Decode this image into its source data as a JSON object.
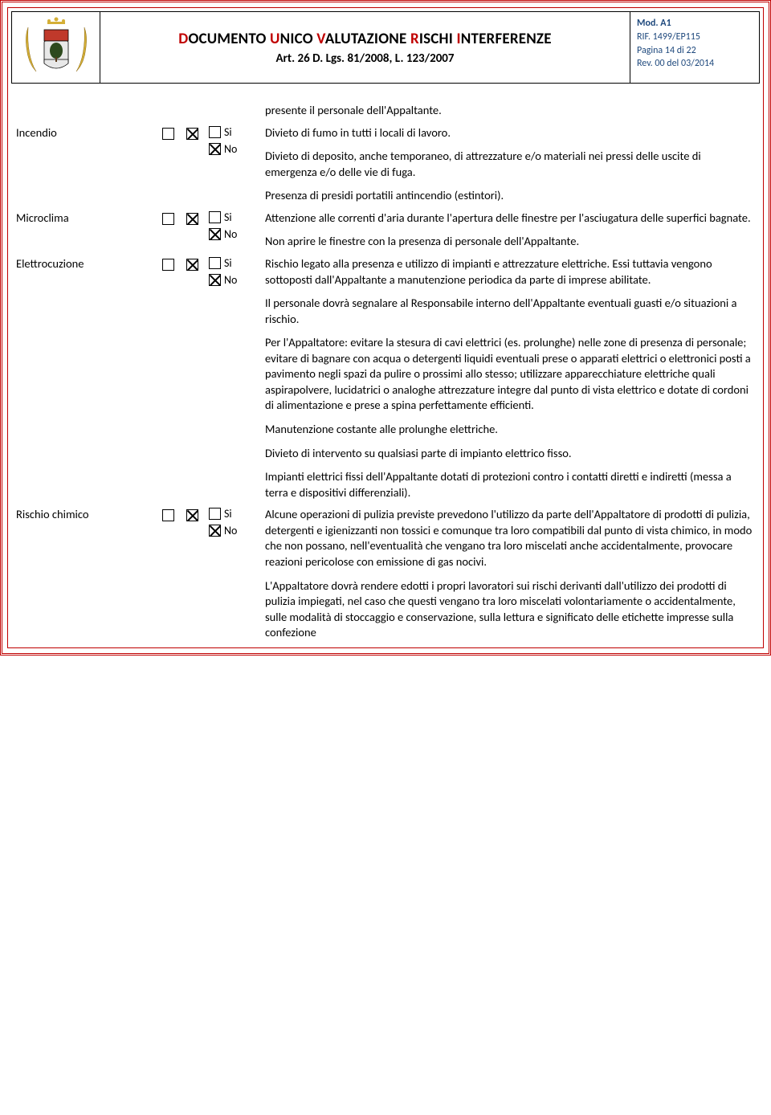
{
  "header": {
    "title_parts": [
      "D",
      "OCUMENTO ",
      "U",
      "NICO ",
      "V",
      "ALUTAZIONE ",
      "R",
      "ISCHI ",
      "I",
      "NTERFERENZE"
    ],
    "subtitle": "Art. 26 D. Lgs. 81/2008, L. 123/2007",
    "meta": {
      "mod": "Mod. A1",
      "rif": "RIF. 1499/EP115",
      "pagina": "Pagina 14 di 22",
      "rev": "Rev. 00 del 03/2014"
    }
  },
  "labels": {
    "si": "Si",
    "no": "No"
  },
  "rows": [
    {
      "label": "",
      "show_boxes": false,
      "paras": [
        "presente il personale dell'Appaltante."
      ]
    },
    {
      "label": "Incendio",
      "show_boxes": true,
      "paras": [
        "Divieto di fumo in tutti i locali di lavoro.",
        "Divieto di deposito, anche temporaneo, di attrezzature e/o materiali nei pressi delle uscite di emergenza e/o delle vie di fuga.",
        "Presenza di presidi portatili antincendio (estintori)."
      ]
    },
    {
      "label": "Microclima",
      "show_boxes": true,
      "paras": [
        "Attenzione alle correnti d'aria durante l'apertura delle finestre per l'asciugatura delle superfici bagnate.",
        "Non aprire le finestre con la presenza di personale dell'Appaltante."
      ]
    },
    {
      "label": "Elettrocuzione",
      "show_boxes": true,
      "paras": [
        "Rischio legato alla presenza e utilizzo di impianti e attrezzature elettriche. Essi tuttavia vengono sottoposti dall'Appaltante a manutenzione periodica da parte di imprese abilitate.",
        "Il personale dovrà segnalare al Responsabile interno dell'Appaltante eventuali guasti e/o situazioni a rischio.",
        "Per l'Appaltatore: evitare la stesura di cavi elettrici (es. prolunghe) nelle zone di presenza di personale; evitare di bagnare con acqua o detergenti liquidi eventuali prese o apparati elettrici o elettronici posti a pavimento negli spazi da pulire o prossimi allo stesso; utilizzare apparecchiature elettriche quali aspirapolvere, lucidatrici o analoghe attrezzature integre dal punto di vista elettrico e dotate di cordoni di alimentazione e prese a spina perfettamente efficienti.",
        "Manutenzione costante alle prolunghe elettriche.",
        "Divieto di intervento su qualsiasi parte di impianto elettrico fisso.",
        "Impianti elettrici fissi dell'Appaltante dotati di protezioni contro i contatti diretti e indiretti (messa a terra e dispositivi differenziali)."
      ]
    },
    {
      "label": "Rischio chimico",
      "show_boxes": true,
      "paras": [
        "Alcune operazioni di pulizia previste prevedono l'utilizzo da parte dell'Appaltatore di prodotti di pulizia, detergenti e igienizzanti non tossici e comunque tra loro compatibili dal punto di vista chimico, in modo che non possano, nell'eventualità che vengano tra loro miscelati anche accidentalmente, provocare reazioni pericolose con emissione di gas nocivi.",
        "L'Appaltatore dovrà rendere edotti i propri lavoratori sui rischi derivanti dall'utilizzo dei prodotti di pulizia impiegati, nel caso che questi vengano tra loro miscelati volontariamente o accidentalmente, sulle modalità di stoccaggio e conservazione, sulla lettura e significato delle etichette impresse sulla confezione"
      ]
    }
  ]
}
